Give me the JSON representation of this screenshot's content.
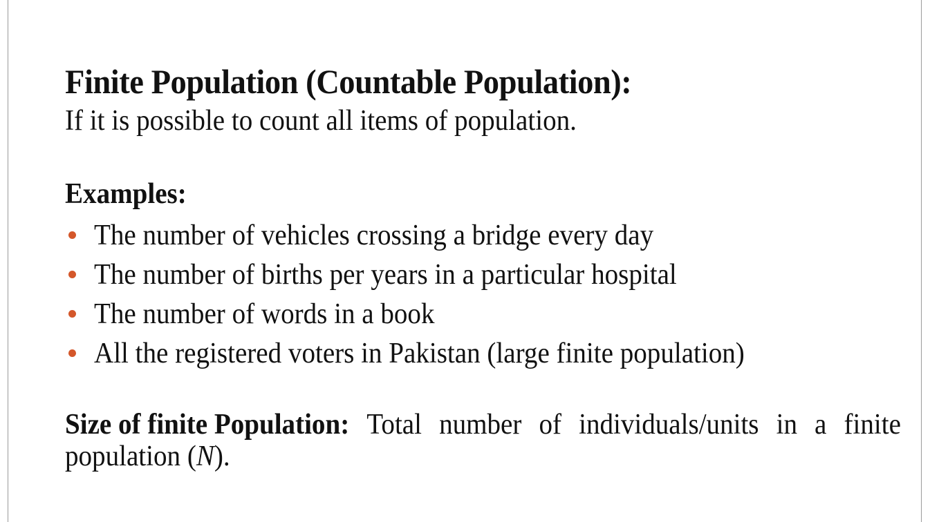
{
  "slide": {
    "heading": "Finite Population (Countable Population):",
    "definition": "If it is possible to count all items of population.",
    "examples_heading": "Examples:",
    "examples": [
      "The number of vehicles crossing a bridge every day",
      "The number of births per years in a particular hospital",
      "The number of words in a book",
      "All the registered voters in Pakistan (large finite population)"
    ],
    "size_label": "Size of finite Population:",
    "size_text_line1_words": [
      "Total",
      "number",
      "of",
      "individuals/units",
      "in",
      "a",
      "finite"
    ],
    "size_text_line2_prefix": "population (",
    "size_symbol": "N",
    "size_text_line2_suffix": ")."
  },
  "colors": {
    "bullet": "#d4572a",
    "text": "#111111",
    "slide_border": "#9a9a9a"
  }
}
